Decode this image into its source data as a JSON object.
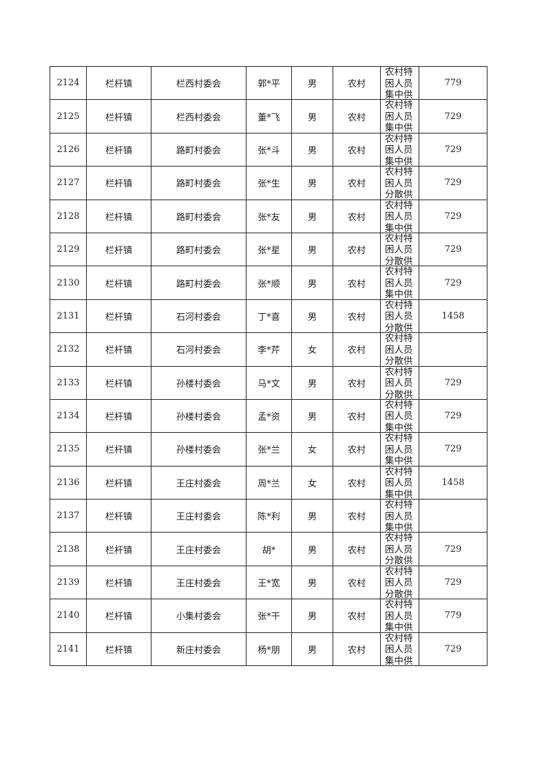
{
  "table": {
    "rows": [
      {
        "no": "2124",
        "town": "栏杆镇",
        "village": "栏西村委会",
        "name": "郭*平",
        "gender": "男",
        "type": "农村",
        "category": "农村特困人员集中供",
        "amount": "779"
      },
      {
        "no": "2125",
        "town": "栏杆镇",
        "village": "栏西村委会",
        "name": "董*飞",
        "gender": "男",
        "type": "农村",
        "category": "农村特困人员集中供",
        "amount": "729"
      },
      {
        "no": "2126",
        "town": "栏杆镇",
        "village": "路町村委会",
        "name": "张*斗",
        "gender": "男",
        "type": "农村",
        "category": "农村特困人员集中供",
        "amount": "729"
      },
      {
        "no": "2127",
        "town": "栏杆镇",
        "village": "路町村委会",
        "name": "张*生",
        "gender": "男",
        "type": "农村",
        "category": "农村特困人员分散供",
        "amount": "729"
      },
      {
        "no": "2128",
        "town": "栏杆镇",
        "village": "路町村委会",
        "name": "张*友",
        "gender": "男",
        "type": "农村",
        "category": "农村特困人员集中供",
        "amount": "729"
      },
      {
        "no": "2129",
        "town": "栏杆镇",
        "village": "路町村委会",
        "name": "张*星",
        "gender": "男",
        "type": "农村",
        "category": "农村特困人员分散供",
        "amount": "729"
      },
      {
        "no": "2130",
        "town": "栏杆镇",
        "village": "路町村委会",
        "name": "张*顺",
        "gender": "男",
        "type": "农村",
        "category": "农村特困人员集中供",
        "amount": "729"
      },
      {
        "no": "2131",
        "town": "栏杆镇",
        "village": "石河村委会",
        "name": "丁*喜",
        "gender": "男",
        "type": "农村",
        "category": "农村特困人员分散供",
        "amount": "1458"
      },
      {
        "no": "2132",
        "town": "栏杆镇",
        "village": "石河村委会",
        "name": "李*芹",
        "gender": "女",
        "type": "农村",
        "category": "农村特困人员分散供",
        "amount": ""
      },
      {
        "no": "2133",
        "town": "栏杆镇",
        "village": "孙楼村委会",
        "name": "马*文",
        "gender": "男",
        "type": "农村",
        "category": "农村特困人员分散供",
        "amount": "729"
      },
      {
        "no": "2134",
        "town": "栏杆镇",
        "village": "孙楼村委会",
        "name": "孟*资",
        "gender": "男",
        "type": "农村",
        "category": "农村特困人员集中供",
        "amount": "729"
      },
      {
        "no": "2135",
        "town": "栏杆镇",
        "village": "孙楼村委会",
        "name": "张*兰",
        "gender": "女",
        "type": "农村",
        "category": "农村特困人员集中供",
        "amount": "729"
      },
      {
        "no": "2136",
        "town": "栏杆镇",
        "village": "王庄村委会",
        "name": "周*兰",
        "gender": "女",
        "type": "农村",
        "category": "农村特困人员集中供",
        "amount": "1458"
      },
      {
        "no": "2137",
        "town": "栏杆镇",
        "village": "王庄村委会",
        "name": "陈*利",
        "gender": "男",
        "type": "农村",
        "category": "农村特困人员集中供",
        "amount": ""
      },
      {
        "no": "2138",
        "town": "栏杆镇",
        "village": "王庄村委会",
        "name": "胡*",
        "gender": "男",
        "type": "农村",
        "category": "农村特困人员分散供",
        "amount": "729"
      },
      {
        "no": "2139",
        "town": "栏杆镇",
        "village": "王庄村委会",
        "name": "王*宽",
        "gender": "男",
        "type": "农村",
        "category": "农村特困人员分散供",
        "amount": "729"
      },
      {
        "no": "2140",
        "town": "栏杆镇",
        "village": "小集村委会",
        "name": "张*干",
        "gender": "男",
        "type": "农村",
        "category": "农村特困人员集中供",
        "amount": "779"
      },
      {
        "no": "2141",
        "town": "栏杆镇",
        "village": "新庄村委会",
        "name": "杨*朋",
        "gender": "男",
        "type": "农村",
        "category": "农村特困人员集中供",
        "amount": "729"
      }
    ]
  }
}
